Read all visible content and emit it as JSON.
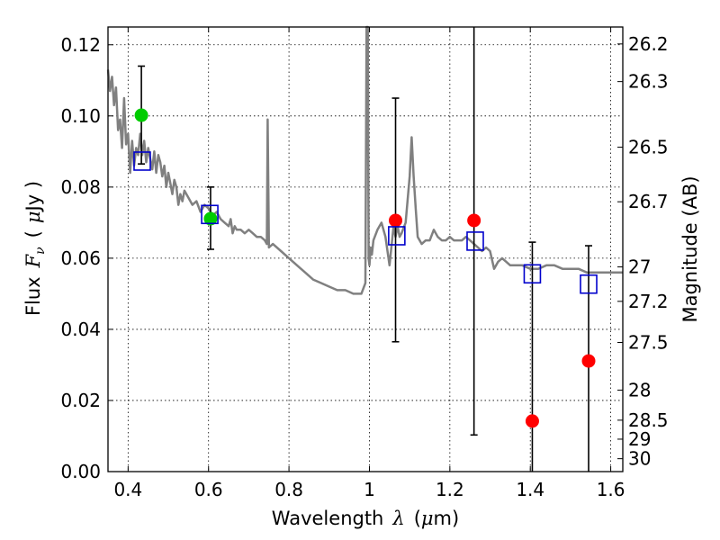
{
  "chart_data": {
    "type": "scatter",
    "title": "",
    "xlabel": "Wavelength",
    "xlabel_symbol": "λ",
    "xlabel_unit_open": "(",
    "xlabel_unit_mu": "μ",
    "xlabel_unit_rest": "m)",
    "ylabel": "Flux",
    "ylabel_symbol": "F",
    "ylabel_subscript": "ν",
    "ylabel_unit_open": "(",
    "ylabel_unit_mu": "μ",
    "ylabel_unit_rest": "Jy )",
    "y2label": "Magnitude (AB)",
    "xlim": [
      0.35,
      1.63
    ],
    "ylim": [
      0.0,
      0.125
    ],
    "grid": true,
    "x_ticks": [
      0.4,
      0.6,
      0.8,
      1.0,
      1.2,
      1.4,
      1.6
    ],
    "x_tick_labels": [
      "0.4",
      "0.6",
      "0.8",
      "1",
      "1.2",
      "1.4",
      "1.6"
    ],
    "y_ticks": [
      0.0,
      0.02,
      0.04,
      0.06,
      0.08,
      0.1,
      0.12
    ],
    "y_tick_labels": [
      "0.00",
      "0.02",
      "0.04",
      "0.06",
      "0.08",
      "0.10",
      "0.12"
    ],
    "y2_ticks": [
      26.2,
      26.3,
      26.5,
      26.7,
      27.0,
      27.2,
      27.5,
      28.0,
      28.5,
      29.0,
      30.0
    ],
    "y2_tick_labels": [
      "26.2",
      "26.3",
      "26.5",
      "26.7",
      "27",
      "27.2",
      "27.5",
      "28",
      "28.5",
      "29",
      "30"
    ],
    "colors": {
      "model": "#808080",
      "detection": "#00cc00",
      "nondetection": "#ff0000",
      "model_photometry": "#0000cc",
      "errorbar": "#000000"
    },
    "series": [
      {
        "kind": "model-spectrum",
        "x": [
          0.35,
          0.355,
          0.36,
          0.365,
          0.37,
          0.375,
          0.38,
          0.385,
          0.39,
          0.395,
          0.4,
          0.405,
          0.41,
          0.415,
          0.42,
          0.425,
          0.43,
          0.435,
          0.44,
          0.445,
          0.45,
          0.455,
          0.46,
          0.465,
          0.47,
          0.475,
          0.48,
          0.485,
          0.49,
          0.495,
          0.5,
          0.505,
          0.51,
          0.515,
          0.52,
          0.525,
          0.53,
          0.535,
          0.54,
          0.55,
          0.56,
          0.57,
          0.58,
          0.59,
          0.6,
          0.61,
          0.62,
          0.63,
          0.64,
          0.65,
          0.655,
          0.66,
          0.665,
          0.67,
          0.68,
          0.69,
          0.7,
          0.71,
          0.72,
          0.73,
          0.74,
          0.745,
          0.747,
          0.75,
          0.76,
          0.78,
          0.8,
          0.82,
          0.84,
          0.86,
          0.88,
          0.9,
          0.92,
          0.94,
          0.96,
          0.98,
          0.99,
          0.993,
          0.996,
          0.998,
          1.0,
          1.003,
          1.006,
          1.01,
          1.02,
          1.03,
          1.04,
          1.05,
          1.06,
          1.065,
          1.07,
          1.075,
          1.08,
          1.09,
          1.1,
          1.105,
          1.11,
          1.115,
          1.12,
          1.13,
          1.14,
          1.15,
          1.16,
          1.17,
          1.18,
          1.19,
          1.2,
          1.21,
          1.22,
          1.23,
          1.24,
          1.25,
          1.26,
          1.27,
          1.28,
          1.29,
          1.3,
          1.31,
          1.32,
          1.33,
          1.34,
          1.35,
          1.36,
          1.38,
          1.4,
          1.42,
          1.44,
          1.46,
          1.48,
          1.5,
          1.52,
          1.54,
          1.56,
          1.58,
          1.6,
          1.62,
          1.63
        ],
        "y": [
          0.113,
          0.107,
          0.111,
          0.103,
          0.108,
          0.096,
          0.099,
          0.091,
          0.105,
          0.092,
          0.095,
          0.084,
          0.093,
          0.086,
          0.091,
          0.089,
          0.095,
          0.089,
          0.093,
          0.087,
          0.091,
          0.088,
          0.085,
          0.09,
          0.084,
          0.089,
          0.087,
          0.083,
          0.086,
          0.08,
          0.084,
          0.081,
          0.078,
          0.082,
          0.08,
          0.075,
          0.078,
          0.076,
          0.079,
          0.077,
          0.075,
          0.076,
          0.073,
          0.075,
          0.074,
          0.072,
          0.073,
          0.071,
          0.07,
          0.069,
          0.071,
          0.067,
          0.069,
          0.068,
          0.068,
          0.067,
          0.068,
          0.067,
          0.066,
          0.066,
          0.065,
          0.064,
          0.099,
          0.063,
          0.064,
          0.062,
          0.06,
          0.058,
          0.056,
          0.054,
          0.053,
          0.052,
          0.051,
          0.051,
          0.05,
          0.05,
          0.053,
          0.125,
          0.125,
          0.06,
          0.058,
          0.063,
          0.061,
          0.065,
          0.068,
          0.07,
          0.066,
          0.058,
          0.069,
          0.066,
          0.069,
          0.066,
          0.067,
          0.07,
          0.083,
          0.094,
          0.083,
          0.074,
          0.066,
          0.064,
          0.065,
          0.065,
          0.068,
          0.066,
          0.065,
          0.065,
          0.066,
          0.065,
          0.065,
          0.065,
          0.066,
          0.065,
          0.064,
          0.063,
          0.062,
          0.063,
          0.062,
          0.057,
          0.059,
          0.06,
          0.059,
          0.058,
          0.058,
          0.058,
          0.057,
          0.057,
          0.058,
          0.058,
          0.057,
          0.057,
          0.057,
          0.056,
          0.056,
          0.056,
          0.056,
          0.056,
          0.056
        ]
      },
      {
        "kind": "detection",
        "x": [
          0.433,
          0.605
        ],
        "y": [
          0.1002,
          0.0711
        ],
        "yerr_low": [
          0.0865,
          0.0625
        ],
        "yerr_high": [
          0.114,
          0.08
        ]
      },
      {
        "kind": "nondetection",
        "x": [
          1.065,
          1.26,
          1.405,
          1.545
        ],
        "y": [
          0.0706,
          0.0706,
          0.0142,
          0.0311
        ],
        "yerr_low": [
          0.0365,
          0.0103,
          0.0,
          0.0
        ],
        "yerr_high": [
          0.105,
          0.125,
          0.0645,
          0.0635
        ]
      },
      {
        "kind": "model-photometry",
        "x": [
          0.435,
          0.603,
          1.068,
          1.263,
          1.405,
          1.545
        ],
        "y": [
          0.0873,
          0.0723,
          0.0663,
          0.0648,
          0.0556,
          0.0527
        ]
      }
    ]
  }
}
